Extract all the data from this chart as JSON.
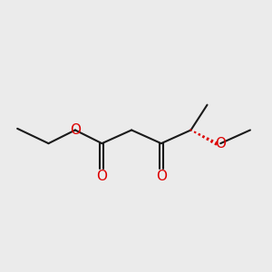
{
  "bg_color": "#ebebeb",
  "bond_color": "#1a1a1a",
  "oxygen_color": "#dd0000",
  "line_width": 1.5,
  "font_size": 11,
  "figsize": [
    3.0,
    3.0
  ],
  "dpi": 100,
  "xlim": [
    0,
    10
  ],
  "ylim": [
    0,
    10
  ]
}
